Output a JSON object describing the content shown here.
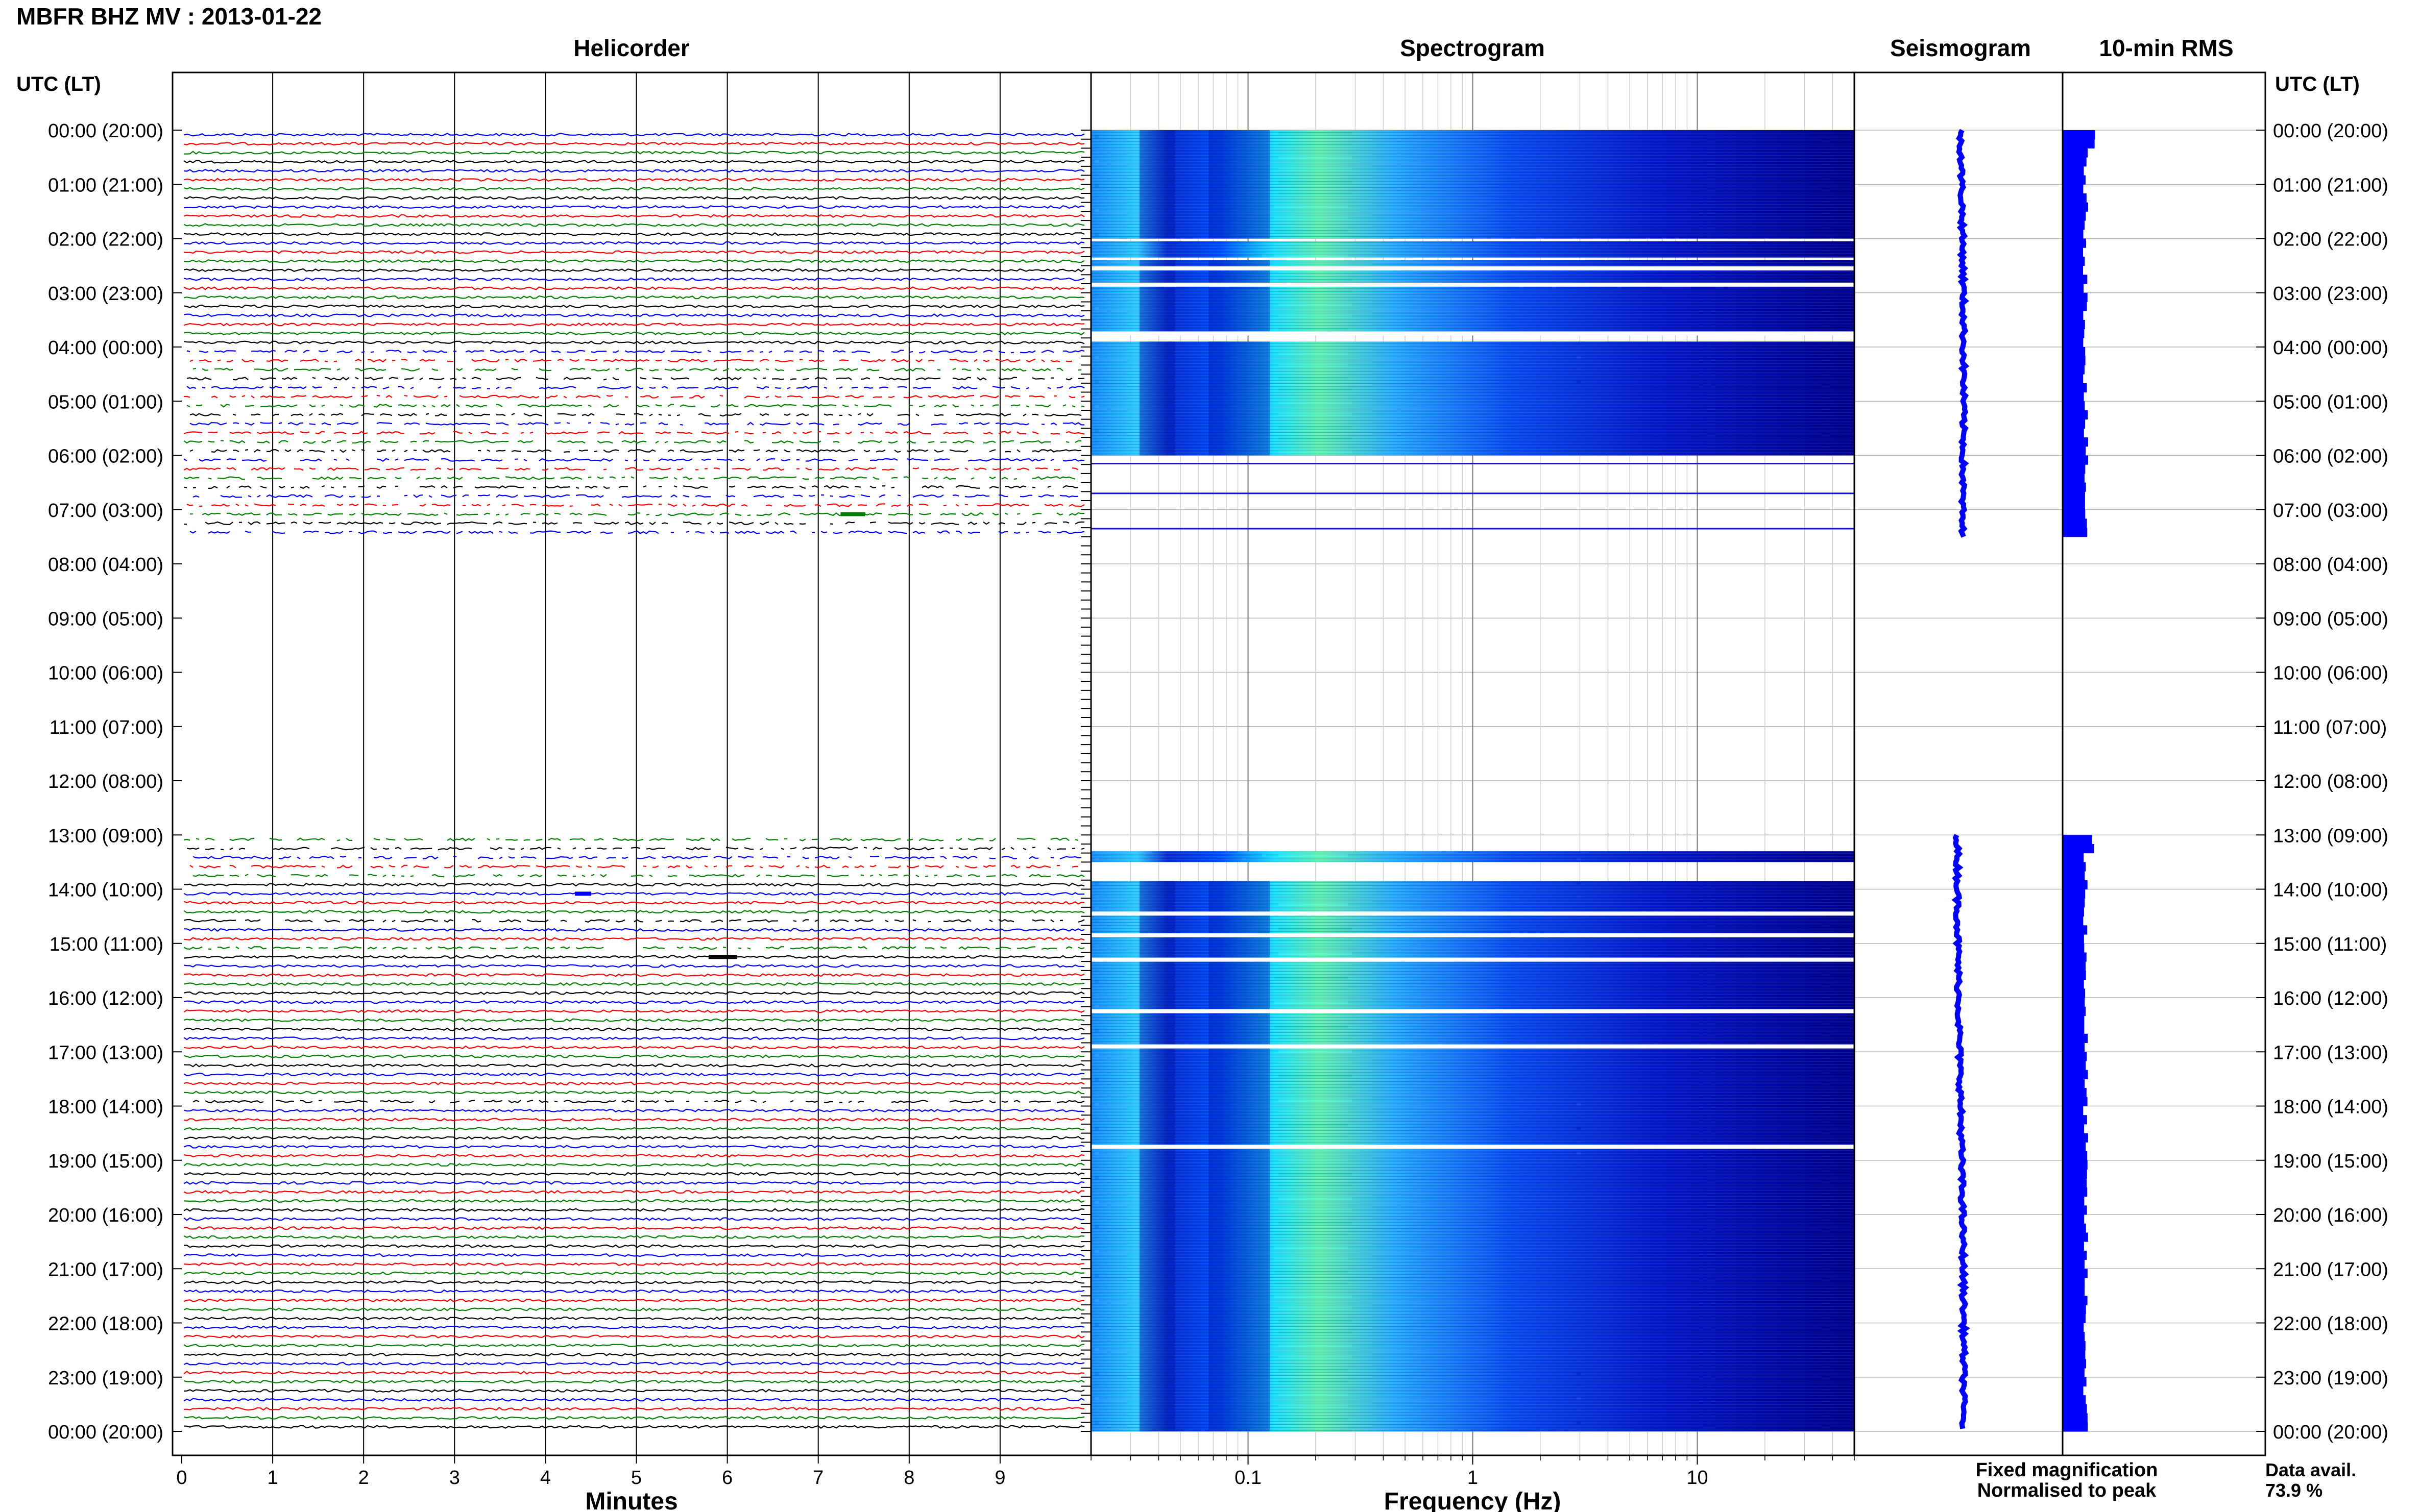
{
  "title": "MBFR BHZ MV : 2013-01-22",
  "time_axis_label": "UTC (LT)",
  "hour_labels": [
    "00:00 (20:00)",
    "01:00 (21:00)",
    "02:00 (22:00)",
    "03:00 (23:00)",
    "04:00 (00:00)",
    "05:00 (01:00)",
    "06:00 (02:00)",
    "07:00 (03:00)",
    "08:00 (04:00)",
    "09:00 (05:00)",
    "10:00 (06:00)",
    "11:00 (07:00)",
    "12:00 (08:00)",
    "13:00 (09:00)",
    "14:00 (10:00)",
    "15:00 (11:00)",
    "16:00 (12:00)",
    "17:00 (13:00)",
    "18:00 (14:00)",
    "19:00 (15:00)",
    "20:00 (16:00)",
    "21:00 (17:00)",
    "22:00 (18:00)",
    "23:00 (19:00)",
    "00:00 (20:00)"
  ],
  "panels": {
    "helicorder": "Helicorder",
    "spectrogram": "Spectrogram",
    "seismogram": "Seismogram",
    "rms": "10-min RMS"
  },
  "legend": {
    "fixed": "Fixed magnification",
    "normalised": "Normalised to peak",
    "fixed_color": "#0000ff",
    "normalised_color": "#ff0000"
  },
  "availability": {
    "label": "Data avail.",
    "value": "73.9 %"
  },
  "chart_data": {
    "type": "heatmap",
    "title": "MBFR BHZ MV : 2013-01-22",
    "station": "MBFR",
    "channel": "BHZ",
    "network": "MV",
    "date": "2013-01-22",
    "time_range_hours": [
      0,
      24
    ],
    "data_gaps_hours": [
      [
        7.5,
        13.0
      ]
    ],
    "helicorder": {
      "xlabel": "Minutes",
      "xlim": [
        0,
        10
      ],
      "xticks": [
        0,
        1,
        2,
        3,
        4,
        5,
        6,
        7,
        8,
        9
      ],
      "rows_per_hour": 6,
      "trace_colors": [
        "#0000ff",
        "#ff0000",
        "#008000",
        "#000000"
      ]
    },
    "spectrogram": {
      "xlabel": "Frequency (Hz)",
      "xscale": "log",
      "xlim": [
        0.02,
        50
      ],
      "xticks": [
        0.1,
        1,
        10
      ],
      "xtick_labels": [
        "0.1",
        "1",
        "10"
      ],
      "colormap": [
        "#00008b",
        "#0000ff",
        "#0080ff",
        "#00ffff",
        "#80ff80"
      ]
    },
    "seismogram": {
      "color": "#0000ff"
    },
    "rms": {
      "interval": "10-min",
      "color": "#0000ff"
    },
    "data_availability_percent": 73.9
  }
}
